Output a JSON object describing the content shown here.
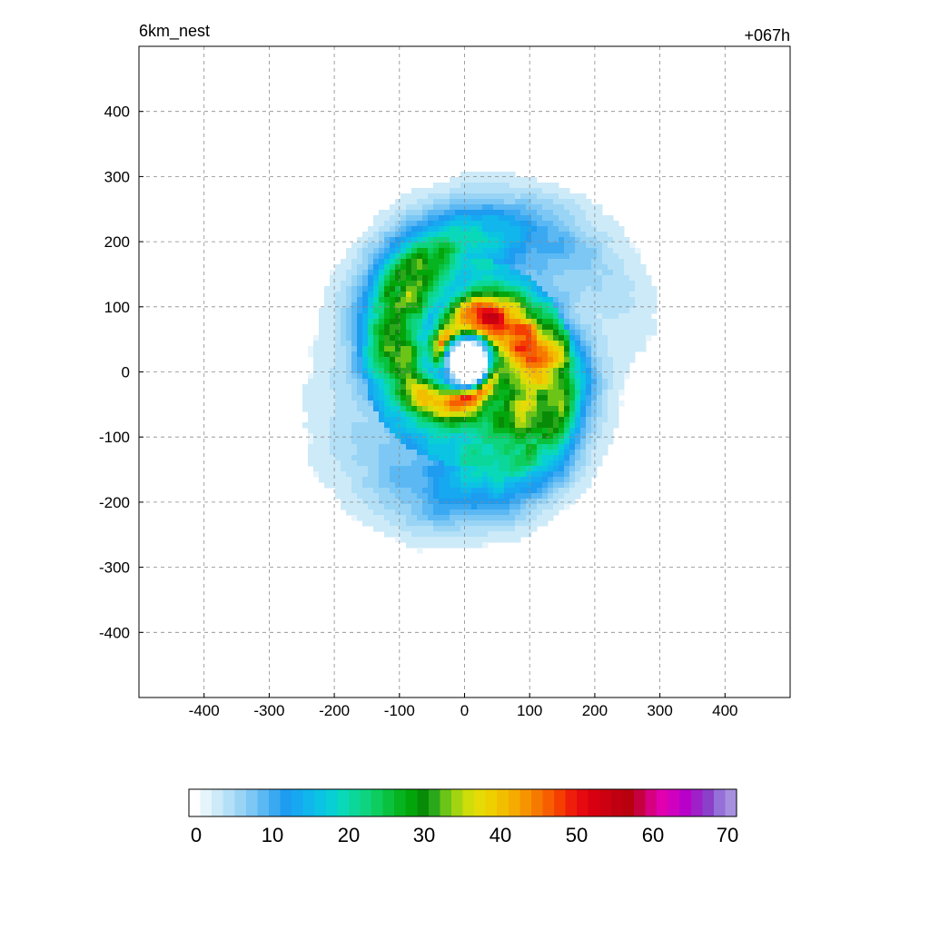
{
  "chart_data": {
    "type": "heatmap",
    "title": "6km_nest",
    "time_label": "+067h",
    "xlabel": "",
    "ylabel": "",
    "xlim": [
      -500,
      500
    ],
    "ylim": [
      -500,
      500
    ],
    "xticks": [
      -400,
      -300,
      -200,
      -100,
      0,
      100,
      200,
      300,
      400
    ],
    "yticks": [
      -400,
      -300,
      -200,
      -100,
      0,
      100,
      200,
      300,
      400
    ],
    "grid": true,
    "colorbar": {
      "placement": "bottom",
      "range": [
        0,
        70
      ],
      "ticks": [
        0,
        10,
        20,
        30,
        40,
        50,
        60,
        70
      ],
      "colors": [
        "#ffffff",
        "#e6f4fb",
        "#cdeaf8",
        "#b3e0f7",
        "#99d4f5",
        "#7cc7f4",
        "#5bb8f3",
        "#3aa9f2",
        "#1d9cf0",
        "#16a8f0",
        "#10b6ec",
        "#0bc3e3",
        "#08cfd5",
        "#09d9b8",
        "#0cd79b",
        "#0ed47f",
        "#0ccd5e",
        "#09c13e",
        "#06b420",
        "#03a60a",
        "#088c08",
        "#2aa81a",
        "#6cc417",
        "#a3d412",
        "#cfdd0b",
        "#e6db06",
        "#eed000",
        "#f2bf00",
        "#f5ab00",
        "#f69400",
        "#f77a00",
        "#f75e00",
        "#f43f00",
        "#ef1e0a",
        "#e60a10",
        "#d80010",
        "#cc0010",
        "#c00010",
        "#b8000e",
        "#c60040",
        "#d60080",
        "#e000b0",
        "#d000c0",
        "#b800c8",
        "#a020c8",
        "#8a40c8",
        "#9470d8",
        "#a890e0"
      ]
    },
    "annotations": [
      "eye at (5, 15), radius ~30",
      "spiral rainbands, max wind ~55 near the eyewall"
    ],
    "field": {
      "eye": [
        5,
        15
      ],
      "peak_value": 55
    }
  }
}
